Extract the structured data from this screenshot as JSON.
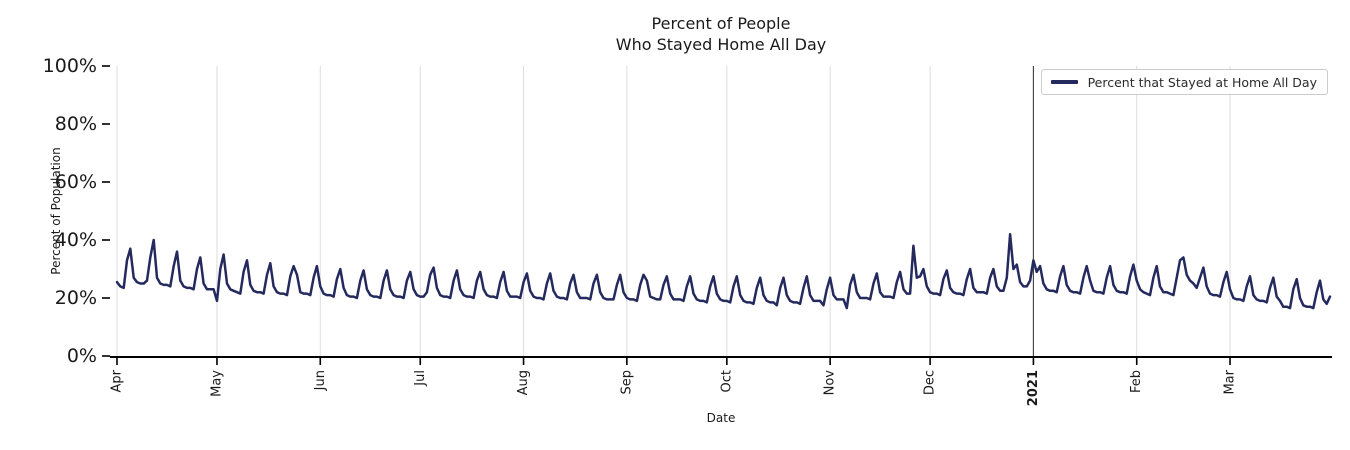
{
  "title": {
    "line1": "Percent of People",
    "line2": "Who Stayed Home All Day"
  },
  "axes": {
    "x_label": "Date",
    "y_label": "Percent of Population"
  },
  "legend": {
    "label": "Percent that Stayed at Home All Day"
  },
  "colors": {
    "line": "#252a5e",
    "grid": "#dcdcdc",
    "axis": "#000000",
    "year_divider": "#404040",
    "text": "#1a1a1a",
    "legend_border": "#cccccc"
  },
  "chart_data": {
    "type": "line",
    "title": "Percent of People Who Stayed Home All Day",
    "xlabel": "Date",
    "ylabel": "Percent of Population",
    "ylim": [
      0,
      100
    ],
    "grid": "vertical-only",
    "legend_position": "upper right",
    "start_date": "2020-04-01",
    "frequency": "daily",
    "y_ticks": [
      {
        "value": 0,
        "label": "0%"
      },
      {
        "value": 20,
        "label": "20%"
      },
      {
        "value": 40,
        "label": "40%"
      },
      {
        "value": 60,
        "label": "60%"
      },
      {
        "value": 80,
        "label": "80%"
      },
      {
        "value": 100,
        "label": "100%"
      }
    ],
    "x_ticks": [
      {
        "day": 0,
        "label": "Apr",
        "bold": false
      },
      {
        "day": 30,
        "label": "May",
        "bold": false
      },
      {
        "day": 61,
        "label": "Jun",
        "bold": false
      },
      {
        "day": 91,
        "label": "Jul",
        "bold": false
      },
      {
        "day": 122,
        "label": "Aug",
        "bold": false
      },
      {
        "day": 153,
        "label": "Sep",
        "bold": false
      },
      {
        "day": 183,
        "label": "Oct",
        "bold": false
      },
      {
        "day": 214,
        "label": "Nov",
        "bold": false
      },
      {
        "day": 244,
        "label": "Dec",
        "bold": false
      },
      {
        "day": 275,
        "label": "2021",
        "bold": true
      },
      {
        "day": 306,
        "label": "Feb",
        "bold": false
      },
      {
        "day": 334,
        "label": "Mar",
        "bold": false
      }
    ],
    "year_divider_day": 275,
    "series": [
      {
        "name": "Percent that Stayed at Home All Day",
        "color": "#252a5e",
        "unit": "percent",
        "values": [
          25.5,
          24,
          23.5,
          33,
          37,
          27,
          25.5,
          25,
          25,
          26,
          34,
          40,
          27,
          25,
          24.5,
          24.5,
          24,
          31,
          36,
          26,
          24,
          23.5,
          23.5,
          23,
          30,
          34,
          25,
          23,
          23,
          23,
          19,
          30,
          35,
          25,
          23,
          22.5,
          22,
          21.5,
          29,
          33,
          24.5,
          22.5,
          22,
          22,
          21.5,
          28,
          32,
          24,
          22,
          21.5,
          21.5,
          21,
          27.5,
          31,
          28,
          22,
          21.5,
          21.5,
          21,
          27,
          31,
          24,
          21.5,
          21,
          21,
          20.5,
          26.5,
          30,
          23.5,
          21,
          20.5,
          20.5,
          20,
          26,
          29.5,
          23,
          21,
          20.5,
          20.5,
          20,
          26,
          29.5,
          23,
          21,
          20.5,
          20.5,
          20,
          26,
          29,
          23,
          21,
          20.5,
          20.5,
          22,
          28,
          30.5,
          23.5,
          21,
          20.5,
          20.5,
          20,
          26,
          29.5,
          23,
          21,
          20.5,
          20.5,
          20,
          26,
          29,
          23,
          21,
          20.5,
          20.5,
          20,
          25.5,
          29,
          22.5,
          20.5,
          20.5,
          20.5,
          20,
          25.5,
          28.5,
          22.5,
          20.5,
          20,
          20,
          19.5,
          25,
          28.5,
          22.5,
          20.5,
          20,
          20,
          19.5,
          25,
          28,
          22,
          20,
          20,
          20,
          19.5,
          25,
          28,
          22,
          20,
          19.5,
          19.5,
          19.5,
          24.5,
          28,
          22,
          20,
          19.5,
          19.5,
          19,
          24.5,
          28,
          26,
          20.5,
          20,
          19.5,
          19.5,
          24.5,
          27.5,
          21.5,
          19.5,
          19.5,
          19.5,
          19,
          24,
          27.5,
          21.5,
          19.5,
          19,
          19,
          18.5,
          24,
          27.5,
          21.5,
          19.5,
          19,
          19,
          18.5,
          24,
          27.5,
          21,
          19,
          18.5,
          18.5,
          18,
          23.5,
          27,
          21,
          19,
          18.5,
          18.5,
          17.5,
          23.5,
          27,
          21,
          19,
          18.5,
          18.5,
          18,
          23.5,
          27.5,
          21,
          19,
          19,
          19,
          17.5,
          23,
          27,
          21,
          19.5,
          19.5,
          19.5,
          16.5,
          24.5,
          28,
          22,
          20,
          20,
          20,
          19.5,
          25,
          28.5,
          22,
          20.5,
          20.5,
          20.5,
          20,
          25.5,
          29,
          23,
          21.5,
          21.5,
          38,
          27,
          27.5,
          30,
          24,
          22,
          21.5,
          21.5,
          21,
          26.5,
          29.5,
          23.5,
          22,
          21.5,
          21.5,
          21,
          26.5,
          30,
          23.5,
          22,
          22,
          22,
          21.5,
          27,
          30,
          24,
          22.5,
          22.5,
          27,
          42,
          30,
          31.5,
          25.5,
          24,
          24,
          26,
          33,
          29,
          31,
          25,
          23,
          22.5,
          22.5,
          22,
          27.5,
          31,
          24.5,
          22.5,
          22,
          22,
          21.5,
          27,
          31,
          26,
          22.5,
          22,
          22,
          21.5,
          27,
          31,
          24.5,
          22.5,
          22,
          22,
          21.5,
          27.5,
          31.5,
          26,
          23,
          22,
          21.5,
          21,
          27,
          31,
          24,
          22,
          22,
          21.5,
          21,
          27,
          33,
          34,
          28,
          26,
          25,
          23.5,
          27,
          30.5,
          24,
          21.5,
          21,
          21,
          20.5,
          25.5,
          29,
          23,
          20,
          19.5,
          19.5,
          19,
          24,
          27.5,
          21,
          19.5,
          19,
          19,
          18.5,
          23.5,
          27,
          20.5,
          19,
          17,
          17,
          16.5,
          23,
          26.5,
          20,
          17.5,
          17,
          17,
          16.5,
          22,
          26,
          19.5,
          18,
          20.5
        ]
      }
    ]
  }
}
